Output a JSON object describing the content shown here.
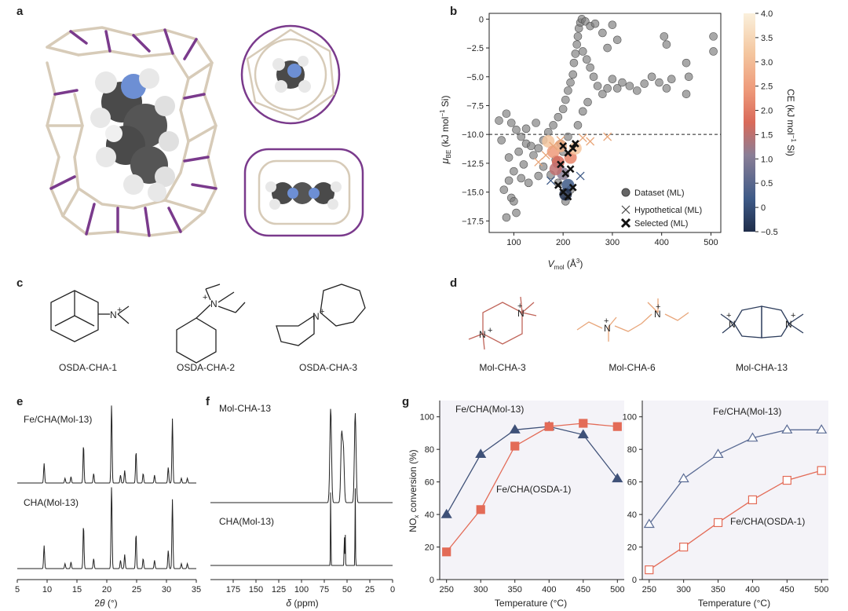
{
  "panels": {
    "a": "a",
    "b": "b",
    "c": "c",
    "d": "d",
    "e": "e",
    "f": "f",
    "g": "g"
  },
  "chart_data": [
    {
      "id": "b",
      "type": "scatter",
      "title": "",
      "xlabel": "V_mol (Å³)",
      "ylabel": "μ_BE (kJ mol⁻¹ Si)",
      "xlabel_main": "V",
      "xlabel_sub": "mol",
      "xlabel_unit": " (Å",
      "xlabel_sup": "3",
      "xlabel_close": ")",
      "ylabel_main": "μ",
      "ylabel_sub": "BE",
      "ylabel_unit": " (kJ mol",
      "ylabel_sup": "−1",
      "ylabel_tail": " Si)",
      "xlim": [
        50,
        520
      ],
      "ylim": [
        -18.5,
        0.5
      ],
      "xticks": [
        100,
        200,
        300,
        400,
        500
      ],
      "yticks": [
        0,
        -2.5,
        -5.0,
        -7.5,
        -10.0,
        -12.5,
        -15.0,
        -17.5
      ],
      "ytick_labels": [
        "0",
        "−2.5",
        "−5.0",
        "−7.5",
        "−10.0",
        "−12.5",
        "−15.0",
        "−17.5"
      ],
      "threshold": -10.0,
      "legend": [
        "Dataset (ML)",
        "Hypothetical (ML)",
        "Selected (ML)"
      ],
      "colorbar": {
        "label_main": "CE (kJ mol",
        "label_sup": "−1",
        "label_tail": " Si)",
        "range": [
          -0.5,
          4.0
        ],
        "ticks": [
          "4.0",
          "3.5",
          "3.0",
          "2.5",
          "2.0",
          "1.5",
          "1.0",
          "0.5",
          "0",
          "−0.5"
        ]
      },
      "series": [
        {
          "name": "Dataset (ML)",
          "points": [
            [
              85,
              -8.2
            ],
            [
              95,
              -9.0
            ],
            [
              105,
              -9.6
            ],
            [
              115,
              -10.2
            ],
            [
              125,
              -10.8
            ],
            [
              135,
              -11.0
            ],
            [
              110,
              -11.5
            ],
            [
              90,
              -12.0
            ],
            [
              100,
              -13.2
            ],
            [
              80,
              -14.8
            ],
            [
              95,
              -15.5
            ],
            [
              105,
              -16.8
            ],
            [
              85,
              -17.2
            ],
            [
              120,
              -12.6
            ],
            [
              140,
              -11.8
            ],
            [
              150,
              -11.2
            ],
            [
              160,
              -10.5
            ],
            [
              170,
              -9.8
            ],
            [
              180,
              -9.2
            ],
            [
              190,
              -8.5
            ],
            [
              200,
              -7.8
            ],
            [
              205,
              -7.0
            ],
            [
              210,
              -6.2
            ],
            [
              215,
              -5.5
            ],
            [
              220,
              -4.8
            ],
            [
              222,
              -3.8
            ],
            [
              225,
              -3.0
            ],
            [
              228,
              -2.2
            ],
            [
              230,
              -1.5
            ],
            [
              232,
              -0.8
            ],
            [
              235,
              -0.3
            ],
            [
              238,
              0.0
            ],
            [
              245,
              -0.2
            ],
            [
              255,
              -0.6
            ],
            [
              265,
              -0.4
            ],
            [
              240,
              -2.8
            ],
            [
              248,
              -3.5
            ],
            [
              255,
              -4.2
            ],
            [
              262,
              -5.0
            ],
            [
              270,
              -5.8
            ],
            [
              280,
              -6.5
            ],
            [
              290,
              -6.0
            ],
            [
              300,
              -5.2
            ],
            [
              310,
              -6.0
            ],
            [
              320,
              -5.5
            ],
            [
              335,
              -5.8
            ],
            [
              350,
              -6.2
            ],
            [
              365,
              -5.6
            ],
            [
              380,
              -5.0
            ],
            [
              395,
              -5.5
            ],
            [
              410,
              -6.0
            ],
            [
              420,
              -5.2
            ],
            [
              450,
              -3.8
            ],
            [
              455,
              -5.0
            ],
            [
              450,
              -6.5
            ],
            [
              405,
              -1.5
            ],
            [
              410,
              -2.2
            ],
            [
              505,
              -1.5
            ],
            [
              505,
              -2.8
            ],
            [
              300,
              -0.5
            ],
            [
              310,
              -1.8
            ],
            [
              280,
              -1.2
            ],
            [
              290,
              -2.5
            ],
            [
              195,
              -10.8
            ],
            [
              200,
              -11.5
            ],
            [
              185,
              -12.2
            ],
            [
              175,
              -13.5
            ],
            [
              210,
              -10.2
            ],
            [
              160,
              -12.8
            ],
            [
              150,
              -13.6
            ],
            [
              130,
              -14.2
            ],
            [
              115,
              -13.8
            ],
            [
              100,
              -15.8
            ],
            [
              90,
              -14.0
            ],
            [
              70,
              -8.8
            ],
            [
              75,
              -10.5
            ],
            [
              125,
              -9.5
            ],
            [
              145,
              -9.0
            ],
            [
              230,
              -9.2
            ],
            [
              240,
              -8.0
            ],
            [
              250,
              -7.2
            ],
            [
              205,
              -15.8
            ],
            [
              215,
              -14.8
            ],
            [
              190,
              -14.2
            ]
          ]
        },
        {
          "name": "Hypothetical (ML)",
          "points": [
            [
              150,
              -12.4
            ],
            [
              165,
              -11.8
            ],
            [
              180,
              -11.0
            ],
            [
              195,
              -10.5
            ],
            [
              240,
              -10.3
            ],
            [
              255,
              -10.6
            ],
            [
              290,
              -10.2
            ],
            [
              175,
              -14.0
            ],
            [
              235,
              -13.6
            ]
          ]
        },
        {
          "name": "Selected (ML)",
          "points": [
            [
              200,
              -11.0
            ],
            [
              210,
              -11.6
            ],
            [
              220,
              -11.2
            ],
            [
              195,
              -12.6
            ],
            [
              205,
              -13.4
            ],
            [
              215,
              -13.0
            ],
            [
              190,
              -14.4
            ],
            [
              200,
              -15.0
            ],
            [
              210,
              -15.4
            ],
            [
              220,
              -14.6
            ],
            [
              225,
              -10.8
            ]
          ]
        }
      ]
    },
    {
      "id": "e",
      "type": "line",
      "xlabel_main": "2",
      "xlabel_theta": "θ",
      "xlabel_unit": " (°)",
      "xlim": [
        5,
        35
      ],
      "xticks": [
        5,
        10,
        15,
        20,
        25,
        30,
        35
      ],
      "series": [
        {
          "name": "Fe/CHA(Mol-13)",
          "peaks": [
            [
              9.5,
              0.25
            ],
            [
              13.0,
              0.06
            ],
            [
              14.0,
              0.08
            ],
            [
              16.1,
              0.48
            ],
            [
              17.8,
              0.12
            ],
            [
              20.8,
              1.0
            ],
            [
              22.3,
              0.1
            ],
            [
              23.0,
              0.16
            ],
            [
              24.9,
              0.4
            ],
            [
              26.1,
              0.12
            ],
            [
              28.0,
              0.1
            ],
            [
              30.3,
              0.2
            ],
            [
              31.0,
              0.82
            ],
            [
              32.5,
              0.06
            ],
            [
              33.5,
              0.06
            ]
          ]
        },
        {
          "name": "CHA(Mol-13)",
          "peaks": [
            [
              9.5,
              0.28
            ],
            [
              13.0,
              0.06
            ],
            [
              14.0,
              0.08
            ],
            [
              16.1,
              0.52
            ],
            [
              17.8,
              0.12
            ],
            [
              20.8,
              1.0
            ],
            [
              22.3,
              0.1
            ],
            [
              23.0,
              0.17
            ],
            [
              24.9,
              0.42
            ],
            [
              26.1,
              0.12
            ],
            [
              28.0,
              0.1
            ],
            [
              30.3,
              0.22
            ],
            [
              31.0,
              0.84
            ],
            [
              32.5,
              0.06
            ],
            [
              33.5,
              0.06
            ]
          ]
        }
      ]
    },
    {
      "id": "f",
      "type": "line",
      "xlabel_main": "δ",
      "xlabel_unit": " (ppm)",
      "xlim": [
        200,
        0
      ],
      "xticks": [
        175,
        150,
        125,
        100,
        75,
        50,
        25,
        0
      ],
      "series": [
        {
          "name": "Mol-CHA-13",
          "peaks": [
            [
              68,
              1.0
            ],
            [
              56,
              0.7
            ],
            [
              54,
              0.55
            ],
            [
              41,
              0.95
            ]
          ]
        },
        {
          "name": "CHA(Mol-13)",
          "peaks": [
            [
              68,
              1.0
            ],
            [
              53,
              0.42
            ],
            [
              52,
              0.42
            ],
            [
              41,
              1.0
            ]
          ]
        }
      ]
    },
    {
      "id": "g-left",
      "type": "line",
      "xlabel": "Temperature (°C)",
      "ylabel_main": "NO",
      "ylabel_sub": "x",
      "ylabel_tail": " conversion (%)",
      "xlim": [
        240,
        510
      ],
      "ylim": [
        0,
        110
      ],
      "xticks": [
        250,
        300,
        350,
        400,
        450,
        500
      ],
      "yticks": [
        0,
        20,
        40,
        60,
        80,
        100
      ],
      "x": [
        250,
        300,
        350,
        400,
        450,
        500
      ],
      "series": [
        {
          "name": "Fe/CHA(Mol-13)",
          "values": [
            40,
            77,
            92,
            94,
            89,
            62
          ],
          "color": "#3f5178",
          "marker": "triangle-filled"
        },
        {
          "name": "Fe/CHA(OSDA-1)",
          "values": [
            17,
            43,
            82,
            94,
            96,
            94
          ],
          "color": "#e36b57",
          "marker": "square-filled"
        }
      ]
    },
    {
      "id": "g-right",
      "type": "line",
      "xlabel": "Temperature (°C)",
      "xlim": [
        240,
        510
      ],
      "ylim": [
        0,
        110
      ],
      "xticks": [
        250,
        300,
        350,
        400,
        450,
        500
      ],
      "yticks": [
        0,
        20,
        40,
        60,
        80,
        100
      ],
      "x": [
        250,
        300,
        350,
        400,
        450,
        500
      ],
      "series": [
        {
          "name": "Fe/CHA(Mol-13)",
          "values": [
            34,
            62,
            77,
            87,
            92,
            92
          ],
          "color": "#5a6b94",
          "marker": "triangle-open"
        },
        {
          "name": "Fe/CHA(OSDA-1)",
          "values": [
            6,
            20,
            35,
            49,
            61,
            67
          ],
          "color": "#e36b57",
          "marker": "square-open"
        }
      ]
    }
  ],
  "structures_c": [
    "OSDA-CHA-1",
    "OSDA-CHA-2",
    "OSDA-CHA-3"
  ],
  "structures_d": [
    {
      "label": "Mol-CHA-3",
      "color": "#c0655a"
    },
    {
      "label": "Mol-CHA-6",
      "color": "#e8a67a"
    },
    {
      "label": "Mol-CHA-13",
      "color": "#2d3d5c"
    }
  ],
  "atoms": {
    "n": "N",
    "plus": "+"
  }
}
